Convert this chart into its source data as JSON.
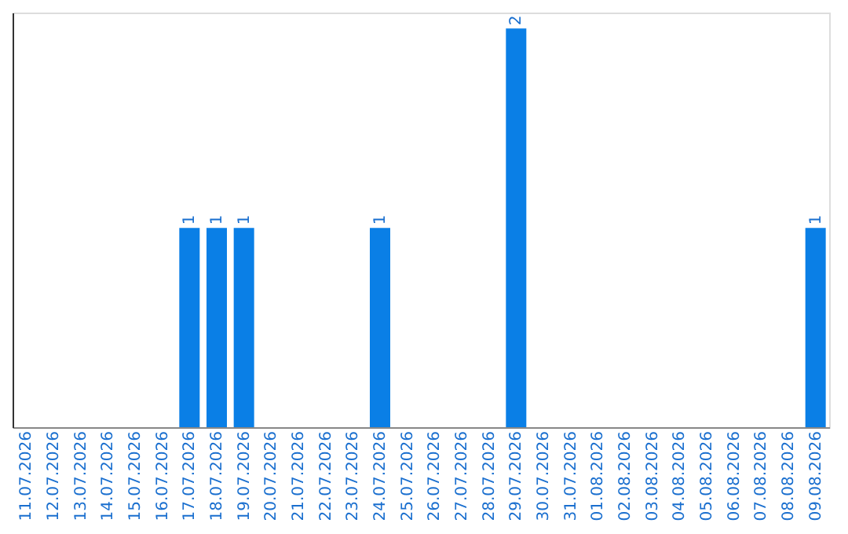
{
  "chart_data": {
    "type": "bar",
    "categories": [
      "11.07.2026",
      "12.07.2026",
      "13.07.2026",
      "14.07.2026",
      "15.07.2026",
      "16.07.2026",
      "17.07.2026",
      "18.07.2026",
      "19.07.2026",
      "20.07.2026",
      "21.07.2026",
      "22.07.2026",
      "23.07.2026",
      "24.07.2026",
      "25.07.2026",
      "26.07.2026",
      "27.07.2026",
      "28.07.2026",
      "29.07.2026",
      "30.07.2026",
      "31.07.2026",
      "01.08.2026",
      "02.08.2026",
      "03.08.2026",
      "04.08.2026",
      "05.08.2026",
      "06.08.2026",
      "07.08.2026",
      "08.08.2026",
      "09.08.2026"
    ],
    "values": [
      0,
      0,
      0,
      0,
      0,
      0,
      1,
      1,
      1,
      0,
      0,
      0,
      0,
      1,
      0,
      0,
      0,
      0,
      2,
      0,
      0,
      0,
      0,
      0,
      0,
      0,
      0,
      0,
      0,
      1
    ],
    "value_labels": [
      null,
      null,
      null,
      null,
      null,
      null,
      "1",
      "1",
      "1",
      null,
      null,
      null,
      null,
      "1",
      null,
      null,
      null,
      null,
      "2",
      null,
      null,
      null,
      null,
      null,
      null,
      null,
      null,
      null,
      null,
      "1"
    ],
    "color": "#0a7fe6",
    "ylim": [
      0,
      2.08
    ],
    "tick_labels": "x",
    "grid": false
  }
}
